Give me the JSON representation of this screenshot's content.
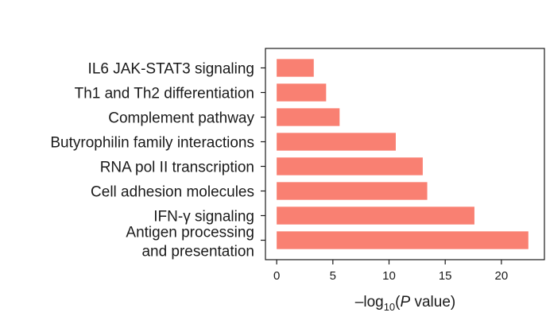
{
  "chart_data": {
    "type": "bar",
    "orientation": "horizontal",
    "title": "",
    "categories": [
      "IL6 JAK-STAT3 signaling",
      "Th1 and Th2 differentiation",
      "Complement pathway",
      "Butyrophilin family interactions",
      "RNA pol II transcription",
      "Cell adhesion molecules",
      "IFN-γ signaling",
      "Antigen processing and presentation"
    ],
    "category_lines": [
      [
        "IL6 JAK-STAT3 signaling"
      ],
      [
        "Th1 and Th2 differentiation"
      ],
      [
        "Complement pathway"
      ],
      [
        "Butyrophilin family interactions"
      ],
      [
        "RNA pol II transcription"
      ],
      [
        "Cell adhesion molecules"
      ],
      [
        "IFN-γ signaling"
      ],
      [
        "Antigen processing",
        "and presentation"
      ]
    ],
    "values": [
      3.3,
      4.4,
      5.6,
      10.6,
      13.0,
      13.4,
      17.6,
      22.4
    ],
    "xlabel_parts": {
      "pre": "–log",
      "sub": "10",
      "open": "(",
      "italic": "P",
      "post": " value)"
    },
    "xlim": [
      -1,
      23.9
    ],
    "xticks": [
      0,
      5,
      10,
      15,
      20
    ],
    "bar_color": "#f98072",
    "grid": false
  }
}
